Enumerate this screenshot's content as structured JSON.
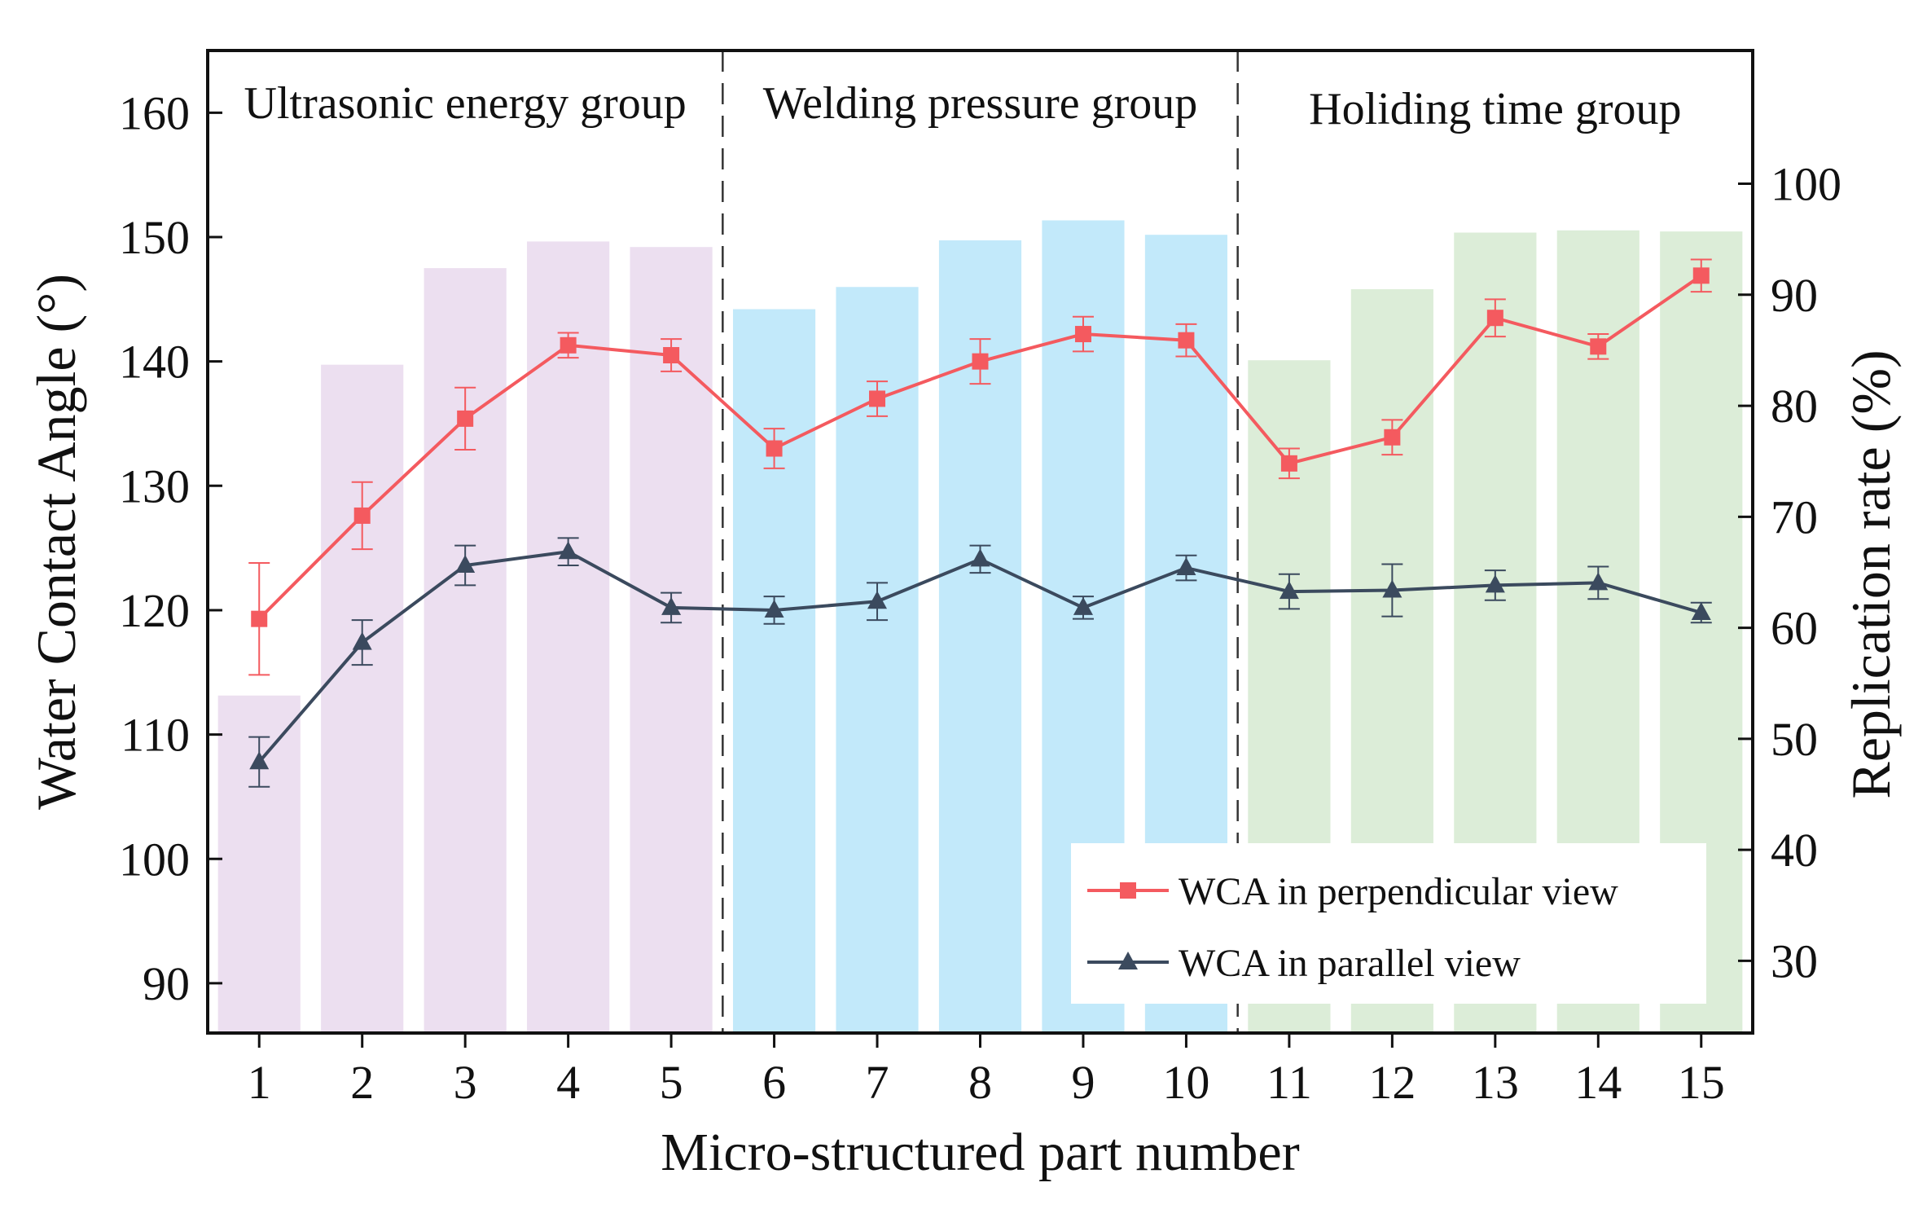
{
  "chart_data": {
    "type": "bar",
    "xlabel": "Micro-structured part number",
    "ylabel": "Water Contact Angle (°)",
    "y2label": "Replication rate (%)",
    "categories": [
      "1",
      "2",
      "3",
      "4",
      "5",
      "6",
      "7",
      "8",
      "9",
      "10",
      "11",
      "12",
      "13",
      "14",
      "15"
    ],
    "ylim": [
      86,
      165
    ],
    "yticks": [
      90,
      100,
      110,
      120,
      130,
      140,
      150,
      160
    ],
    "y2lim": [
      23.5,
      112
    ],
    "y2ticks": [
      30,
      40,
      50,
      60,
      70,
      80,
      90,
      100
    ],
    "groups": [
      {
        "label": "Ultrasonic energy group",
        "start": 1,
        "end": 5,
        "color": "#ecdff0"
      },
      {
        "label": "Welding pressure group",
        "start": 6,
        "end": 10,
        "color": "#c2e9fa"
      },
      {
        "label": "Holiding time group",
        "start": 11,
        "end": 15,
        "color": "#dcedd8"
      }
    ],
    "bars": {
      "name": "Replication rate",
      "axis": "right",
      "values": [
        53.9,
        83.7,
        92.4,
        94.8,
        94.3,
        88.7,
        90.7,
        94.9,
        96.7,
        95.4,
        84.1,
        90.5,
        95.6,
        95.8,
        95.7
      ]
    },
    "series": [
      {
        "name": "WCA in perpendicular view",
        "marker": "square",
        "color": "#f45a5f",
        "values": [
          119.3,
          127.6,
          135.4,
          141.3,
          140.5,
          133.0,
          137.0,
          140.0,
          142.2,
          141.7,
          131.8,
          133.9,
          143.5,
          141.2,
          146.9
        ],
        "errors": [
          4.5,
          2.7,
          2.5,
          1.0,
          1.3,
          1.6,
          1.4,
          1.8,
          1.4,
          1.3,
          1.2,
          1.4,
          1.5,
          1.0,
          1.3
        ]
      },
      {
        "name": "WCA in parallel view",
        "marker": "triangle",
        "color": "#3b4a5e",
        "values": [
          107.8,
          117.4,
          123.6,
          124.7,
          120.2,
          120.0,
          120.7,
          124.1,
          120.2,
          123.4,
          121.5,
          121.6,
          122.0,
          122.2,
          119.8
        ],
        "errors": [
          2.0,
          1.8,
          1.6,
          1.1,
          1.2,
          1.1,
          1.5,
          1.1,
          0.9,
          1.0,
          1.4,
          2.1,
          1.2,
          1.3,
          0.8
        ]
      }
    ],
    "legend": "bottom-right",
    "grid": false
  }
}
